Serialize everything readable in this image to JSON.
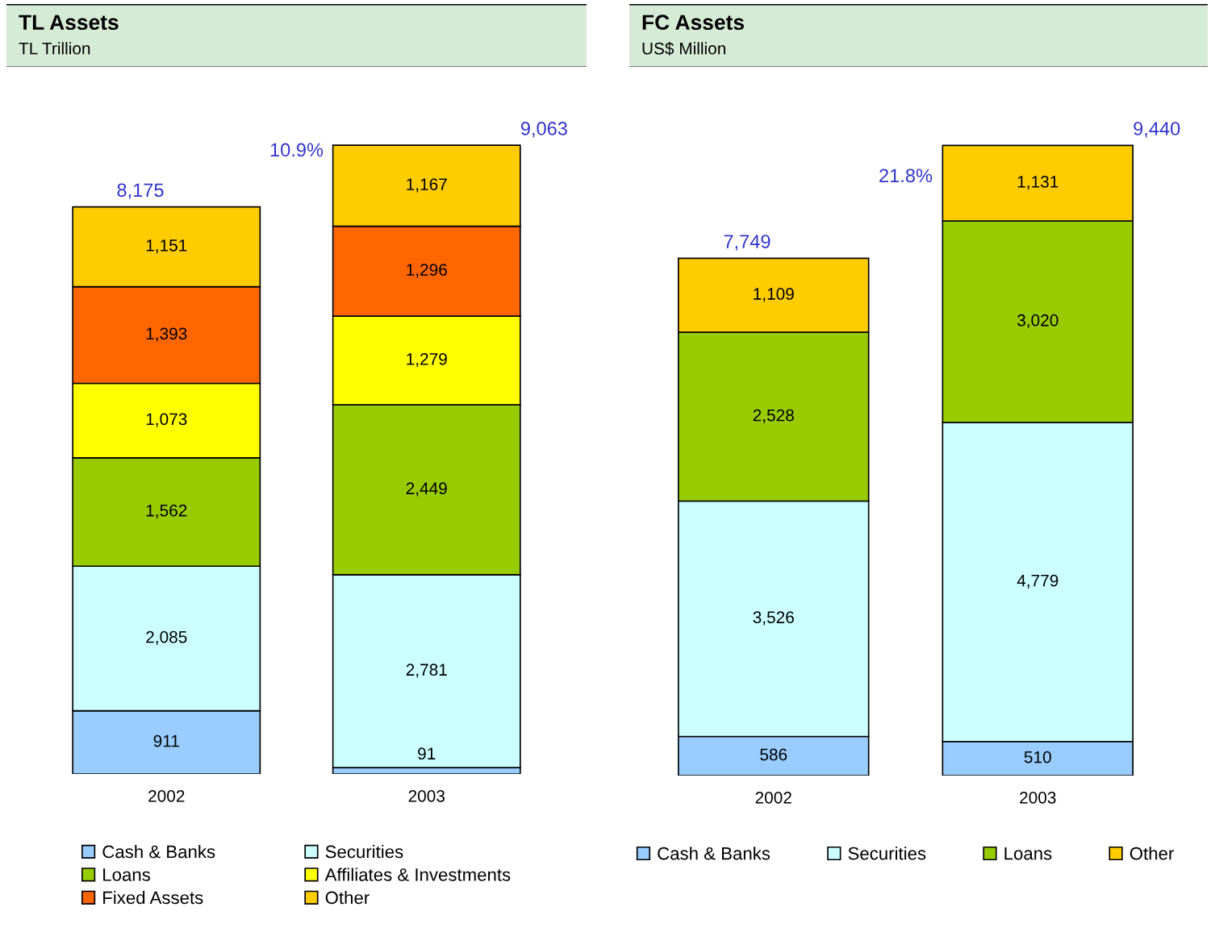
{
  "chart_data": [
    {
      "type": "bar",
      "title": "TL Assets",
      "subtitle": "TL Trillion",
      "stacked": true,
      "legend": "bottom",
      "categories": [
        "2002",
        "2003"
      ],
      "totals": [
        "8,175",
        "9,063"
      ],
      "annotations": [
        "10.9%"
      ],
      "series": [
        {
          "name": "Cash & Banks",
          "color": "#99ccff",
          "values": [
            911,
            91
          ],
          "value_labels": [
            "911",
            "91"
          ]
        },
        {
          "name": "Securities",
          "color": "#ccffff",
          "values": [
            2085,
            2781
          ],
          "value_labels": [
            "2,085",
            "2,781"
          ]
        },
        {
          "name": "Loans",
          "color": "#99cc00",
          "values": [
            1562,
            2449
          ],
          "value_labels": [
            "1,562",
            "2,449"
          ]
        },
        {
          "name": "Affiliates & Investments",
          "color": "#ffff00",
          "values": [
            1073,
            1279
          ],
          "value_labels": [
            "1,073",
            "1,279"
          ]
        },
        {
          "name": "Fixed Assets",
          "color": "#ff6600",
          "values": [
            1393,
            1296
          ],
          "value_labels": [
            "1,393",
            "1,296"
          ]
        },
        {
          "name": "Other",
          "color": "#ffcc00",
          "values": [
            1151,
            1167
          ],
          "value_labels": [
            "1,151",
            "1,167"
          ]
        }
      ]
    },
    {
      "type": "bar",
      "title": "FC Assets",
      "subtitle": "US$ Million",
      "stacked": true,
      "legend": "bottom",
      "categories": [
        "2002",
        "2003"
      ],
      "totals": [
        "7,749",
        "9,440"
      ],
      "annotations": [
        "21.8%"
      ],
      "series": [
        {
          "name": "Cash & Banks",
          "color": "#99ccff",
          "values": [
            586,
            510
          ],
          "value_labels": [
            "586",
            "510"
          ]
        },
        {
          "name": "Securities",
          "color": "#ccffff",
          "values": [
            3526,
            4779
          ],
          "value_labels": [
            "3,526",
            "4,779"
          ]
        },
        {
          "name": "Loans",
          "color": "#99cc00",
          "values": [
            2528,
            3020
          ],
          "value_labels": [
            "2,528",
            "3,020"
          ]
        },
        {
          "name": "Other",
          "color": "#ffcc00",
          "values": [
            1109,
            1131
          ],
          "value_labels": [
            "1,109",
            "1,131"
          ]
        }
      ]
    }
  ]
}
